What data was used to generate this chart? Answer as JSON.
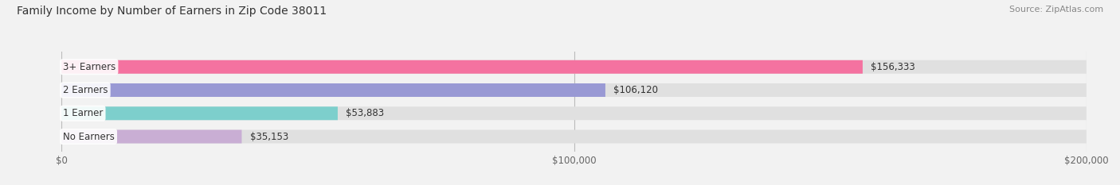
{
  "title": "Family Income by Number of Earners in Zip Code 38011",
  "source": "Source: ZipAtlas.com",
  "categories": [
    "No Earners",
    "1 Earner",
    "2 Earners",
    "3+ Earners"
  ],
  "values": [
    35153,
    53883,
    106120,
    156333
  ],
  "labels": [
    "$35,153",
    "$53,883",
    "$106,120",
    "$156,333"
  ],
  "bar_colors": [
    "#c9aed4",
    "#7dcfcc",
    "#9999d4",
    "#f472a0"
  ],
  "xlim": [
    0,
    200000
  ],
  "xticks": [
    0,
    100000,
    200000
  ],
  "xticklabels": [
    "$0",
    "$100,000",
    "$200,000"
  ],
  "bg_color": "#f2f2f2",
  "bar_bg_color": "#e0e0e0",
  "title_fontsize": 10,
  "source_fontsize": 8,
  "label_fontsize": 8.5,
  "tick_fontsize": 8.5,
  "category_fontsize": 8.5
}
